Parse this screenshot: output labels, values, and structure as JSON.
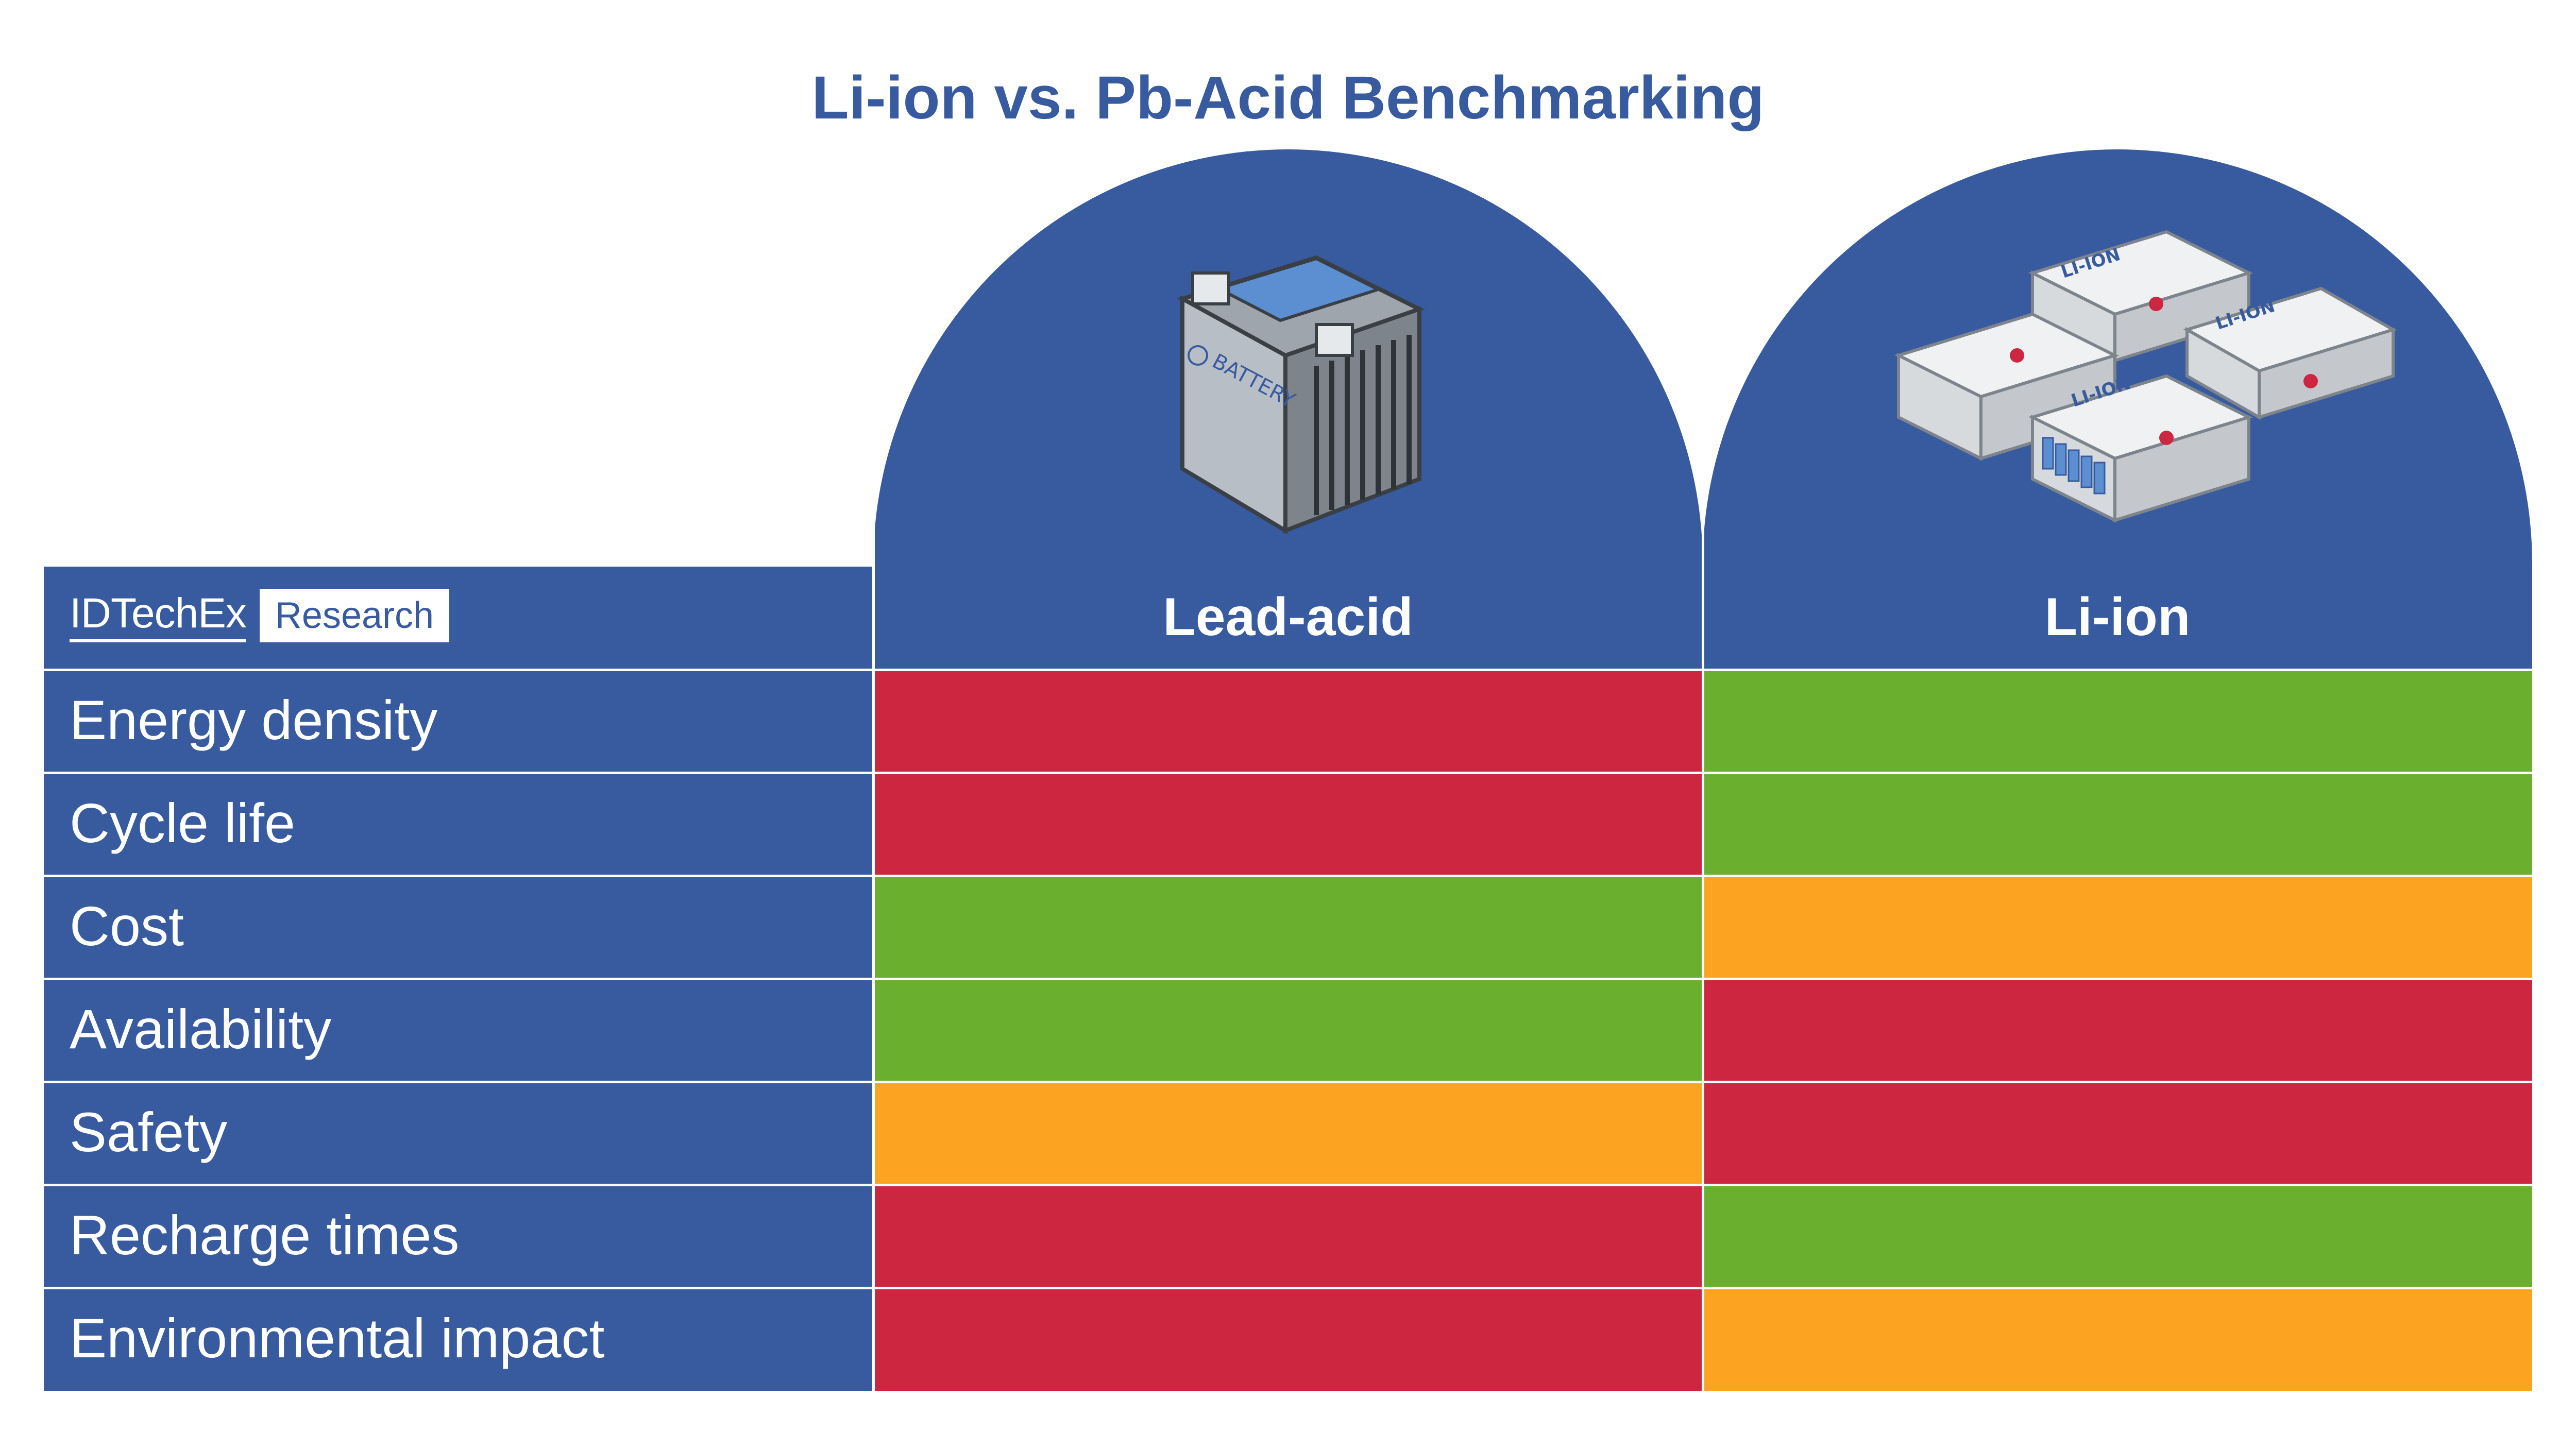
{
  "chart_data": {
    "type": "table",
    "title": "Li-ion vs. Pb-Acid Benchmarking",
    "columns": [
      "Lead-acid",
      "Li-ion"
    ],
    "rows": [
      {
        "label": "Energy density",
        "ratings": [
          "red",
          "green"
        ]
      },
      {
        "label": "Cycle life",
        "ratings": [
          "red",
          "green"
        ]
      },
      {
        "label": "Cost",
        "ratings": [
          "green",
          "orange"
        ]
      },
      {
        "label": "Availability",
        "ratings": [
          "green",
          "red"
        ]
      },
      {
        "label": "Safety",
        "ratings": [
          "orange",
          "red"
        ]
      },
      {
        "label": "Recharge times",
        "ratings": [
          "red",
          "green"
        ]
      },
      {
        "label": "Environmental impact",
        "ratings": [
          "red",
          "orange"
        ]
      }
    ],
    "rating_colors": {
      "red": "#CC2641",
      "green": "#6AAF2E",
      "orange": "#FCA421"
    },
    "grid": true
  },
  "branding": {
    "logo_text": "IDTechEx",
    "logo_badge": "Research"
  },
  "icons": {
    "lead_acid": "lead-acid-battery-icon",
    "li_ion": "li-ion-battery-pack-icon"
  },
  "colors": {
    "primary_blue": "#385BA0",
    "title_blue": "#385BA0",
    "background": "#FFFFFF",
    "grid_line": "#FFFFFF"
  }
}
